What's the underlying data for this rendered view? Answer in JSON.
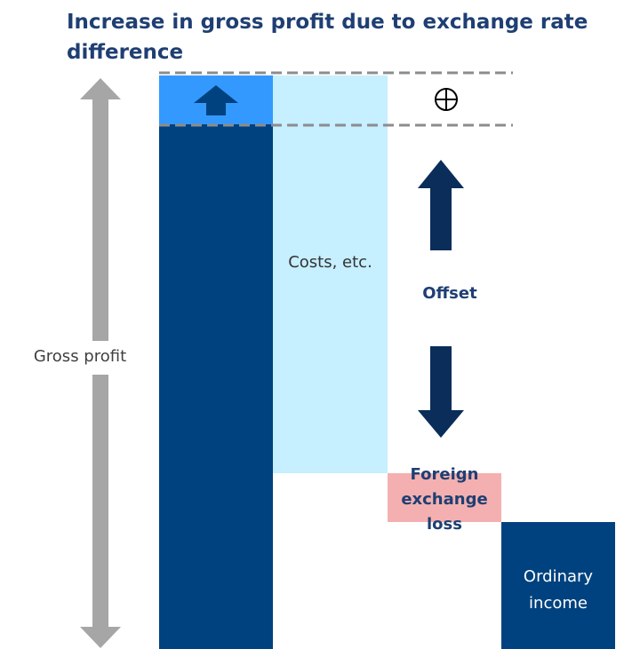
{
  "title": "Increase in gross profit due to exchange rate difference",
  "labels": {
    "gross_profit": "Gross profit",
    "costs": "Costs, etc.",
    "offset": "Offset",
    "fx_loss": "Foreign exchange loss",
    "ordinary_income": "Ordinary income"
  }
}
